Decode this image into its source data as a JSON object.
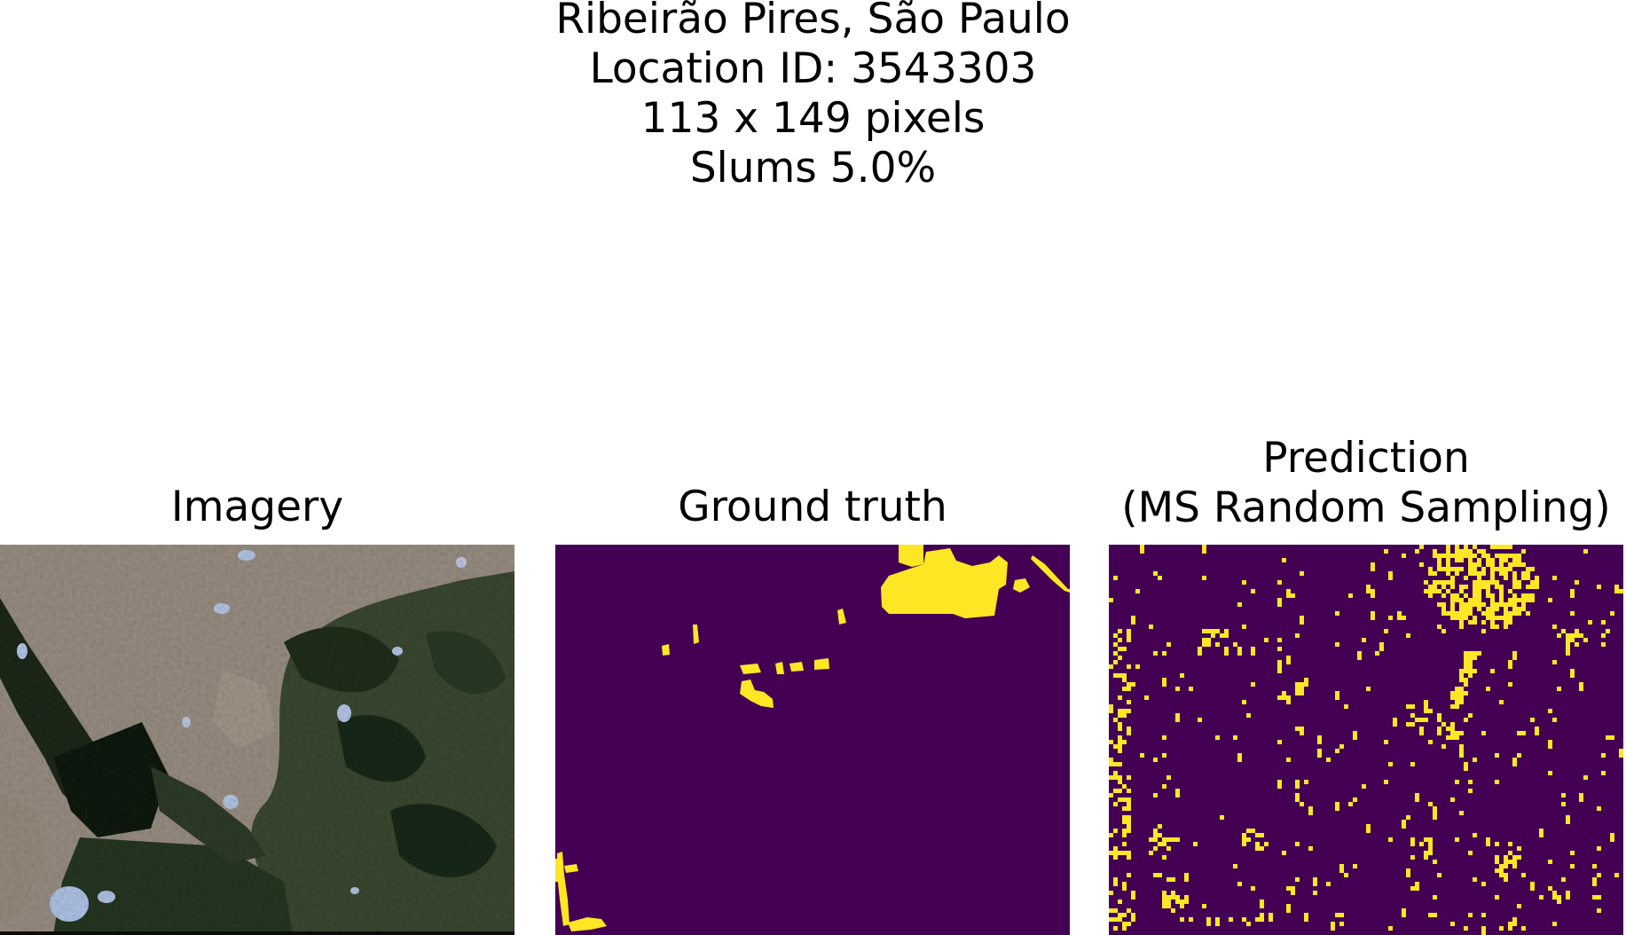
{
  "figure": {
    "title_lines": [
      "Ribeirão Pires, São Paulo",
      "Location ID: 3543303",
      "113 x 149 pixels",
      "Slums 5.0%"
    ]
  },
  "panels": [
    {
      "title_lines": [
        "Imagery"
      ],
      "kind": "satellite-rgb"
    },
    {
      "title_lines": [
        "Ground truth"
      ],
      "kind": "binary-mask"
    },
    {
      "title_lines": [
        "Prediction",
        "(MS Random Sampling)"
      ],
      "kind": "binary-mask"
    }
  ],
  "colors": {
    "background_class": "#440154",
    "slum_class": "#fde725",
    "vegetation": "#263823",
    "urban": "#9c9185",
    "water": "#b4c8ec"
  }
}
